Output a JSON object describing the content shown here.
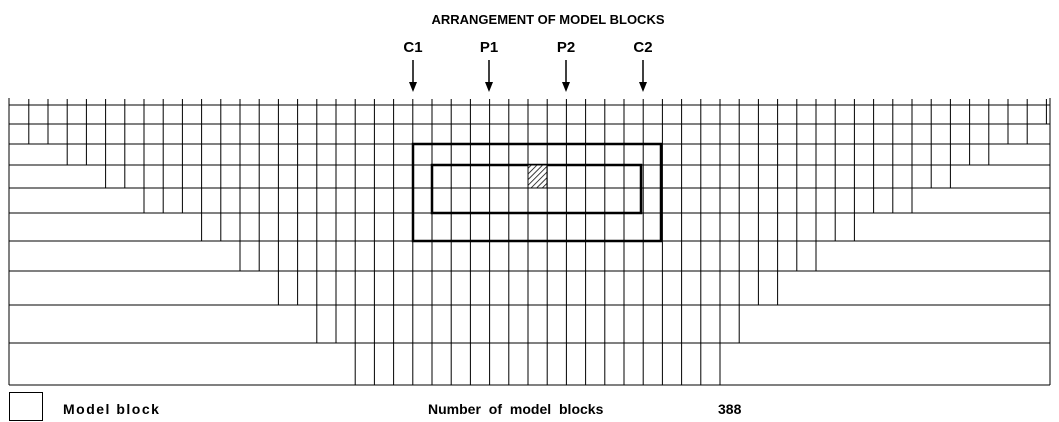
{
  "title": "ARRANGEMENT OF MODEL BLOCKS",
  "markers": [
    "C1",
    "P1",
    "P2",
    "C2"
  ],
  "legend": {
    "label": "Model block"
  },
  "footer": {
    "label": "Number of model blocks",
    "count": 388
  }
}
